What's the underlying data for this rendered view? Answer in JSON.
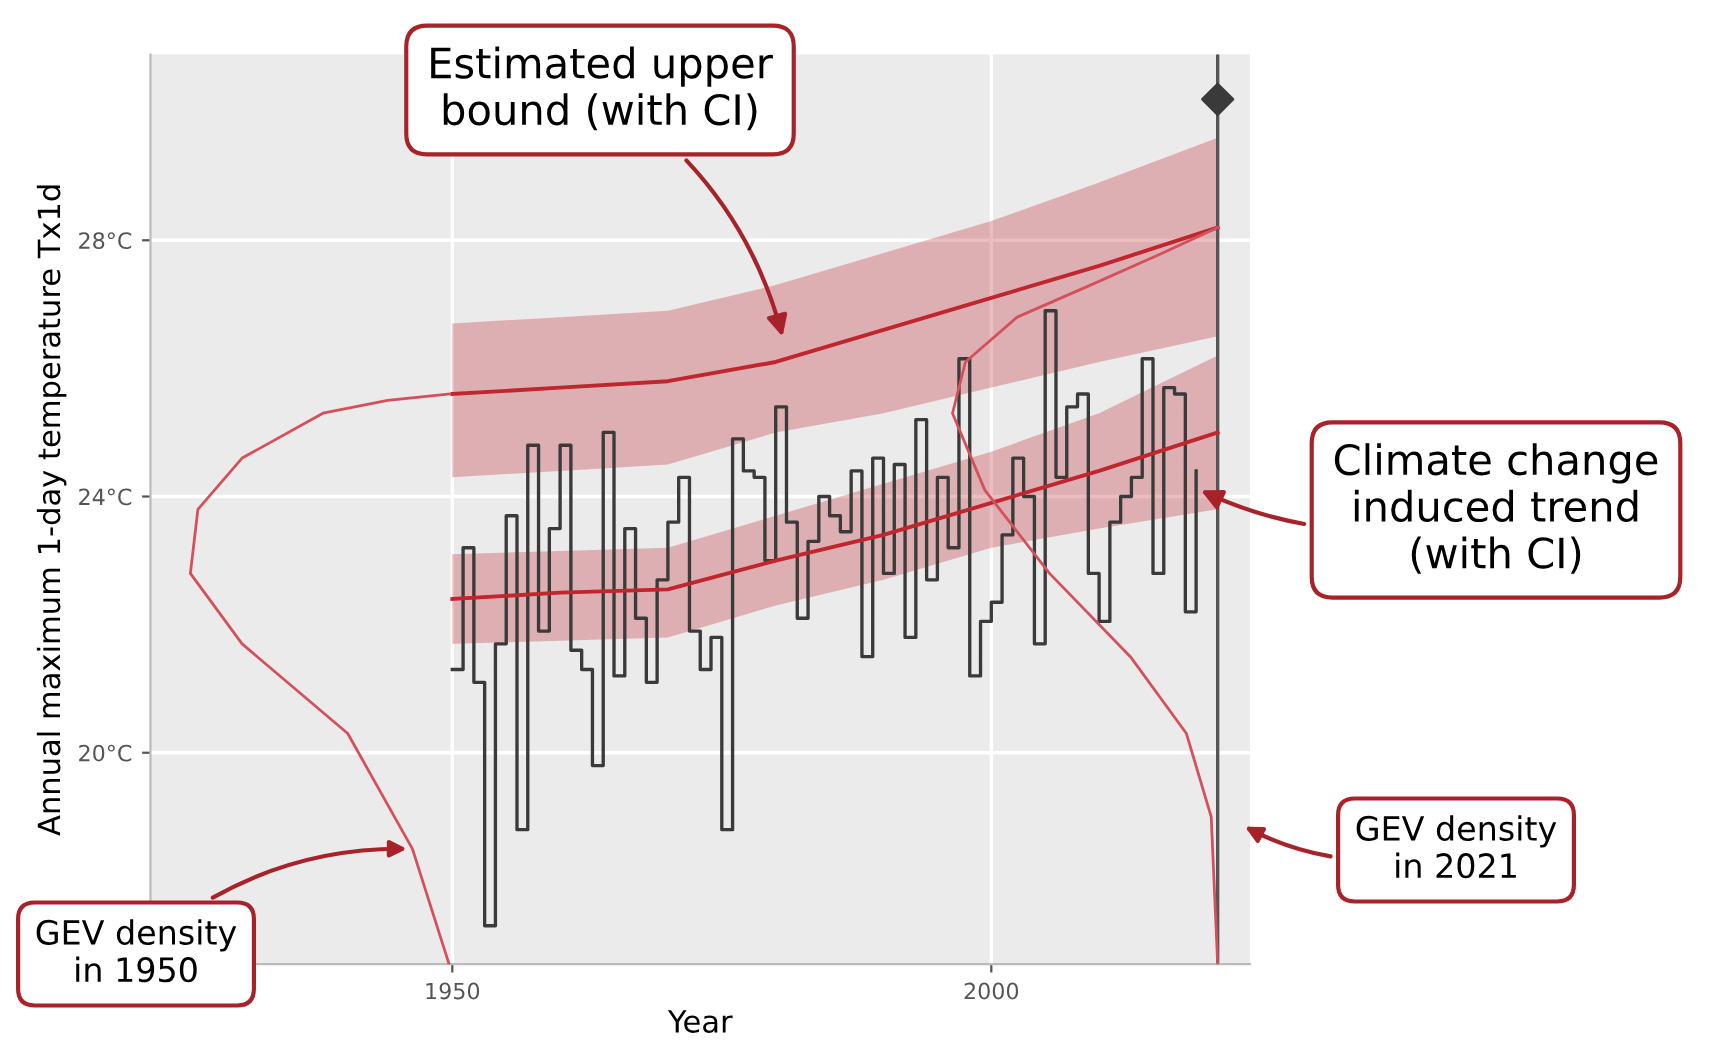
{
  "chart_data": {
    "type": "step",
    "xlabel": "Year",
    "ylabel": "Annual maximum 1-day temperature Tx1d",
    "xlim": [
      1922,
      2024
    ],
    "ylim": [
      16.7,
      30.9
    ],
    "xticks": [
      1950,
      2000
    ],
    "yticks": [
      {
        "value": 20,
        "label": "20°C"
      },
      {
        "value": 24,
        "label": "24°C"
      },
      {
        "value": 28,
        "label": "28°C"
      }
    ],
    "grid": true,
    "series": [
      {
        "color": "#3a3a3a",
        "x": [
          1950,
          1951,
          1952,
          1953,
          1954,
          1955,
          1956,
          1957,
          1958,
          1959,
          1960,
          1961,
          1962,
          1963,
          1964,
          1965,
          1966,
          1967,
          1968,
          1969,
          1970,
          1971,
          1972,
          1973,
          1974,
          1975,
          1976,
          1977,
          1978,
          1979,
          1980,
          1981,
          1982,
          1983,
          1984,
          1985,
          1986,
          1987,
          1988,
          1989,
          1990,
          1991,
          1992,
          1993,
          1994,
          1995,
          1996,
          1997,
          1998,
          1999,
          2000,
          2001,
          2002,
          2003,
          2004,
          2005,
          2006,
          2007,
          2008,
          2009,
          2010,
          2011,
          2012,
          2013,
          2014,
          2015,
          2016,
          2017,
          2018,
          2019
        ],
        "values": [
          21.3,
          23.2,
          21.1,
          17.3,
          21.7,
          23.7,
          18.8,
          24.8,
          21.9,
          23.5,
          24.8,
          21.6,
          21.3,
          19.8,
          25.0,
          21.2,
          23.5,
          22.1,
          21.1,
          22.7,
          23.6,
          24.3,
          21.9,
          21.3,
          21.8,
          18.8,
          24.9,
          24.4,
          24.3,
          23.0,
          25.4,
          23.6,
          22.1,
          23.3,
          24.0,
          23.7,
          23.45,
          24.4,
          21.5,
          24.6,
          22.8,
          24.5,
          21.8,
          25.2,
          22.7,
          24.3,
          23.2,
          26.15,
          21.2,
          22.05,
          22.35,
          23.4,
          24.6,
          24.0,
          21.7,
          26.9,
          24.3,
          25.4,
          25.6,
          22.8,
          22.05,
          23.6,
          24.0,
          24.3,
          26.15,
          22.8,
          25.7,
          25.6,
          22.2,
          24.4
        ]
      },
      {
        "type": "line",
        "color": "#c0262d",
        "x": [
          1950,
          1960,
          1970,
          1980,
          1990,
          2000,
          2010,
          2021
        ],
        "values": [
          22.4,
          22.5,
          22.55,
          23.0,
          23.4,
          23.9,
          24.4,
          25.0
        ],
        "lower": [
          21.7,
          21.75,
          21.8,
          22.3,
          22.7,
          23.2,
          23.5,
          23.8
        ],
        "upper": [
          23.1,
          23.15,
          23.2,
          23.7,
          24.2,
          24.7,
          25.3,
          26.2
        ]
      },
      {
        "type": "line",
        "color": "#c0262d",
        "x": [
          1950,
          1960,
          1970,
          1980,
          1990,
          2000,
          2010,
          2021
        ],
        "values": [
          25.6,
          25.7,
          25.8,
          26.1,
          26.6,
          27.1,
          27.6,
          28.2
        ],
        "lower": [
          24.3,
          24.4,
          24.5,
          25.0,
          25.3,
          25.7,
          26.1,
          26.5
        ],
        "upper": [
          26.7,
          26.8,
          26.9,
          27.3,
          27.8,
          28.3,
          28.9,
          29.6
        ]
      },
      {
        "type": "line",
        "color": "#d4505a",
        "x": [
          1949.7,
          1946.3,
          1940.3,
          1930.5,
          1925.7,
          1926.4,
          1930.5,
          1938,
          1944,
          1949.7
        ],
        "values": [
          16.7,
          18.5,
          20.3,
          21.7,
          22.8,
          23.8,
          24.6,
          25.3,
          25.5,
          25.6
        ]
      },
      {
        "type": "line",
        "color": "#d4505a",
        "x": [
          2021,
          2020.4,
          2018.1,
          2012.9,
          2005.4,
          1999.4,
          1996.4,
          1997.6,
          2002.4,
          2009.2,
          2015.9,
          2021
        ],
        "values": [
          16.7,
          19.0,
          20.3,
          21.5,
          22.8,
          24.1,
          25.3,
          26.1,
          26.8,
          27.3,
          27.8,
          28.2
        ]
      },
      {
        "type": "scatter",
        "color": "#3a3a3a",
        "marker": "diamond",
        "x": [
          2021
        ],
        "values": [
          30.2
        ]
      }
    ],
    "ref_lines": [
      {
        "axis": "x",
        "value": 2021,
        "color": "#555555"
      }
    ],
    "annotations": [
      "Estimated upper\nbound (with CI)",
      "Climate change\ninduced trend\n(with CI)",
      "GEV density\nin 2021",
      {
        "text": "GEV density\nin 1950",
        "x": 1946.3,
        "y": 18.5
      }
    ]
  }
}
